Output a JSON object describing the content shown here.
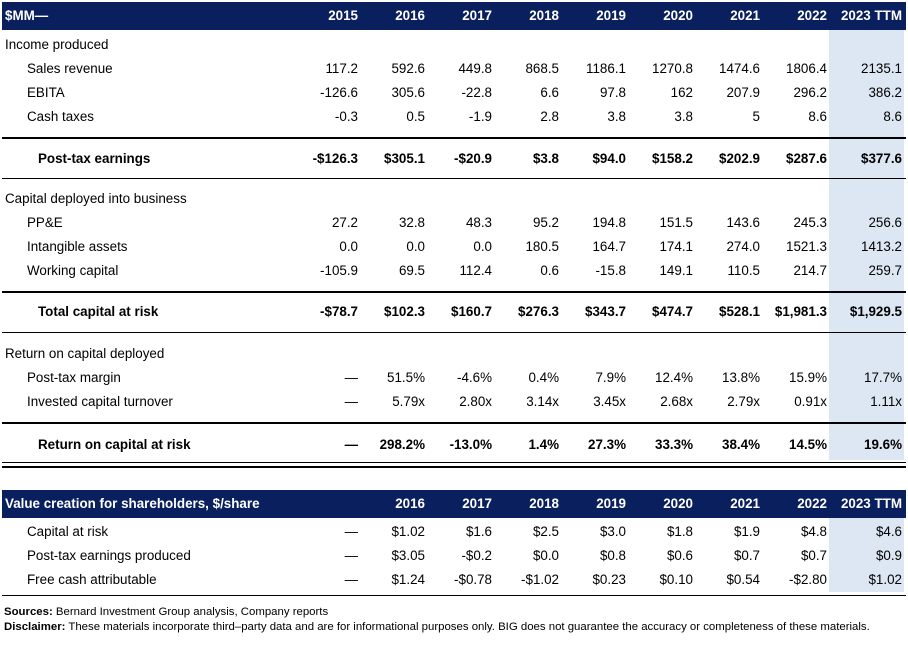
{
  "top_header": {
    "label": "$MM—",
    "years": [
      "2015",
      "2016",
      "2017",
      "2018",
      "2019",
      "2020",
      "2021",
      "2022",
      "2023 TTM"
    ]
  },
  "income": {
    "section_label": "Income produced",
    "rows": [
      {
        "label": "Sales revenue",
        "values": [
          "117.2",
          "592.6",
          "449.8",
          "868.5",
          "1186.1",
          "1270.8",
          "1474.6",
          "1806.4",
          "2135.1"
        ]
      },
      {
        "label": "EBITA",
        "values": [
          "-126.6",
          "305.6",
          "-22.8",
          "6.6",
          "97.8",
          "162",
          "207.9",
          "296.2",
          "386.2"
        ]
      },
      {
        "label": "Cash taxes",
        "values": [
          "-0.3",
          "0.5",
          "-1.9",
          "2.8",
          "3.8",
          "3.8",
          "5",
          "8.6",
          "8.6"
        ]
      }
    ],
    "total": {
      "label": "Post-tax earnings",
      "values": [
        "-$126.3",
        "$305.1",
        "-$20.9",
        "$3.8",
        "$94.0",
        "$158.2",
        "$202.9",
        "$287.6",
        "$377.6"
      ]
    }
  },
  "capital": {
    "section_label": "Capital deployed into business",
    "rows": [
      {
        "label": "PP&E",
        "values": [
          "27.2",
          "32.8",
          "48.3",
          "95.2",
          "194.8",
          "151.5",
          "143.6",
          "245.3",
          "256.6"
        ]
      },
      {
        "label": "Intangible assets",
        "values": [
          "0.0",
          "0.0",
          "0.0",
          "180.5",
          "164.7",
          "174.1",
          "274.0",
          "1521.3",
          "1413.2"
        ]
      },
      {
        "label": "Working capital",
        "values": [
          "-105.9",
          "69.5",
          "112.4",
          "0.6",
          "-15.8",
          "149.1",
          "110.5",
          "214.7",
          "259.7"
        ]
      }
    ],
    "total": {
      "label": "Total capital at risk",
      "values": [
        "-$78.7",
        "$102.3",
        "$160.7",
        "$276.3",
        "$343.7",
        "$474.7",
        "$528.1",
        "$1,981.3",
        "$1,929.5"
      ]
    }
  },
  "returns": {
    "section_label": "Return on capital deployed",
    "rows": [
      {
        "label": "Post-tax margin",
        "values": [
          "—",
          "51.5%",
          "-4.6%",
          "0.4%",
          "7.9%",
          "12.4%",
          "13.8%",
          "15.9%",
          "17.7%"
        ]
      },
      {
        "label": "Invested capital turnover",
        "values": [
          "—",
          "5.79x",
          "2.80x",
          "3.14x",
          "3.45x",
          "2.68x",
          "2.79x",
          "0.91x",
          "1.11x"
        ]
      }
    ],
    "total": {
      "label": "Return on capital at risk",
      "values": [
        "—",
        "298.2%",
        "-13.0%",
        "1.4%",
        "27.3%",
        "33.3%",
        "38.4%",
        "14.5%",
        "19.6%"
      ]
    }
  },
  "value_header": {
    "label": "Value creation for shareholders, $/share",
    "years": [
      "",
      "2016",
      "2017",
      "2018",
      "2019",
      "2020",
      "2021",
      "2022",
      "2023 TTM"
    ]
  },
  "value": {
    "rows": [
      {
        "label": "Capital at risk",
        "values": [
          "—",
          "$1.02",
          "$1.6",
          "$2.5",
          "$3.0",
          "$1.8",
          "$1.9",
          "$4.8",
          "$4.6"
        ]
      },
      {
        "label": "Post-tax earnings produced",
        "values": [
          "—",
          "$3.05",
          "-$0.2",
          "$0.0",
          "$0.8",
          "$0.6",
          "$0.7",
          "$0.7",
          "$0.9"
        ]
      },
      {
        "label": "Free cash attributable",
        "values": [
          "—",
          "$1.24",
          "-$0.78",
          "-$1.02",
          "$0.23",
          "$0.10",
          "$0.54",
          "-$2.80",
          "$1.02"
        ]
      }
    ]
  },
  "notes": {
    "sources_label": "Sources:",
    "sources_text": " Bernard Investment Group analysis, Company reports",
    "disclaimer_label": "Disclaimer:",
    "disclaimer_text": " These materials incorporate third–party data and are for informational purposes only. BIG does not guarantee the accuracy or completeness of these materials."
  }
}
